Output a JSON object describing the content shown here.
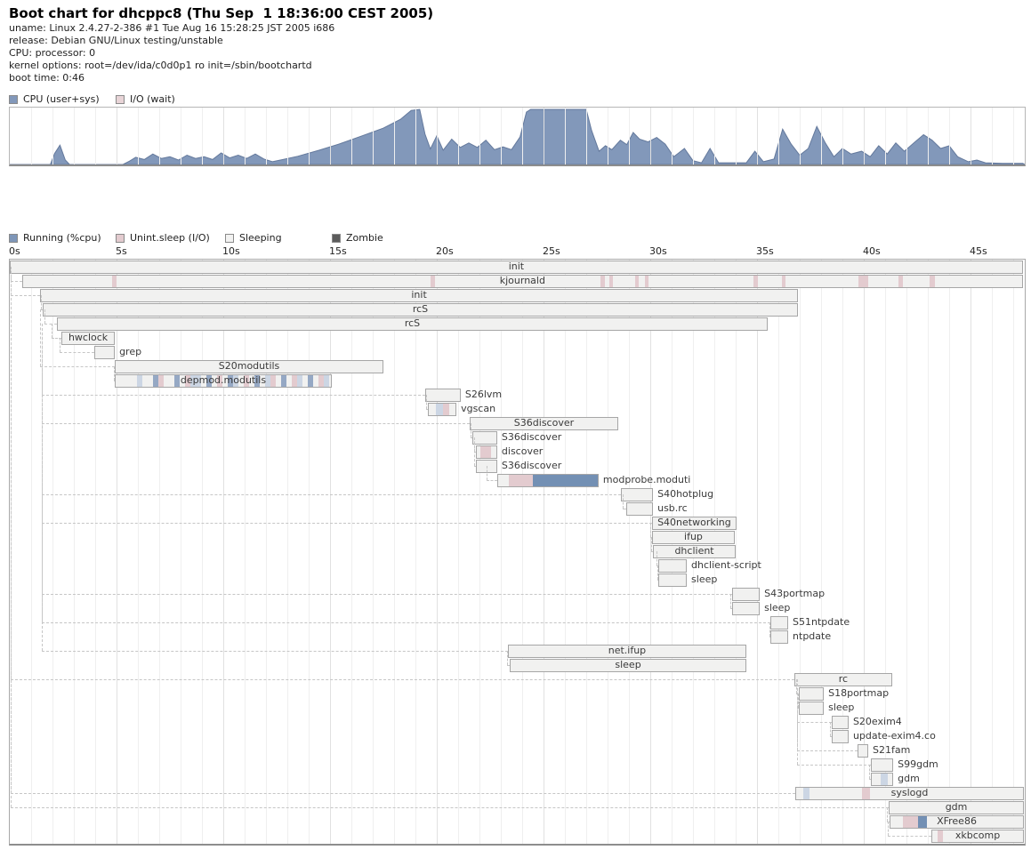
{
  "header": {
    "title": "Boot chart for dhcppc8 (Thu Sep  1 18:36:00 CEST 2005)",
    "info_lines": [
      "uname: Linux 2.4.27-2-386 #1 Tue Aug 16 15:28:25 JST 2005 i686",
      "release: Debian GNU/Linux testing/unstable",
      "CPU: processor: 0",
      "kernel options: root=/dev/ida/c0d0p1 ro init=/sbin/bootchartd",
      "boot time: 0:46"
    ]
  },
  "palette": {
    "B": "#7390b4",
    "b": "#95a8c4",
    "lb": "#ccd6e4",
    "p": "#e3cbcf",
    "bar_bg": "#f1f1f0",
    "bar_border": "#a6a6a6",
    "cpu_fill": "#8298ba",
    "cpu_stroke": "#64799c",
    "sleep_chip": "#f2f2f1",
    "zombie_chip": "#5c5c5c",
    "io_chip": "#e8d4d7"
  },
  "cpu_legend": [
    {
      "label": "CPU (user+sys)",
      "color": "#8298ba"
    },
    {
      "label": "I/O (wait)",
      "color": "#e8d4d7"
    }
  ],
  "proc_legend": [
    {
      "label": "Running (%cpu)",
      "color": "#7e96b8"
    },
    {
      "label": "Unint.sleep (I/O)",
      "color": "#e3cbcf"
    },
    {
      "label": "Sleeping",
      "color": "#f2f2f1"
    },
    {
      "label": "Zombie",
      "color": "#5c5c5c"
    }
  ],
  "chart_data": [
    {
      "type": "area",
      "name": "cpu-usage",
      "title": "CPU (user+sys) utilization over boot",
      "x_unit": "seconds",
      "x_range": [
        0,
        47.5
      ],
      "y_range": [
        0,
        100
      ],
      "grid": true,
      "series": [
        {
          "name": "CPU (user+sys)",
          "points": [
            [
              0,
              0
            ],
            [
              1.9,
              0
            ],
            [
              2.1,
              20
            ],
            [
              2.35,
              35
            ],
            [
              2.6,
              8
            ],
            [
              2.8,
              0
            ],
            [
              5.3,
              0
            ],
            [
              5.6,
              6
            ],
            [
              5.9,
              13
            ],
            [
              6.3,
              9
            ],
            [
              6.7,
              19
            ],
            [
              7.1,
              11
            ],
            [
              7.5,
              14
            ],
            [
              7.9,
              8
            ],
            [
              8.3,
              17
            ],
            [
              8.7,
              11
            ],
            [
              9.1,
              14
            ],
            [
              9.5,
              9
            ],
            [
              9.9,
              21
            ],
            [
              10.3,
              12
            ],
            [
              10.7,
              17
            ],
            [
              11.1,
              11
            ],
            [
              11.5,
              19
            ],
            [
              11.9,
              10
            ],
            [
              12.3,
              5
            ],
            [
              12.8,
              9
            ],
            [
              13.5,
              15
            ],
            [
              14.5,
              26
            ],
            [
              15.5,
              38
            ],
            [
              16.5,
              52
            ],
            [
              17.5,
              66
            ],
            [
              18.3,
              82
            ],
            [
              18.8,
              98
            ],
            [
              19.2,
              100
            ],
            [
              19.45,
              55
            ],
            [
              19.7,
              28
            ],
            [
              20,
              52
            ],
            [
              20.3,
              26
            ],
            [
              20.7,
              46
            ],
            [
              21.1,
              31
            ],
            [
              21.5,
              39
            ],
            [
              21.9,
              31
            ],
            [
              22.3,
              44
            ],
            [
              22.7,
              27
            ],
            [
              23.1,
              32
            ],
            [
              23.5,
              27
            ],
            [
              23.9,
              50
            ],
            [
              24.2,
              95
            ],
            [
              24.4,
              100
            ],
            [
              27,
              100
            ],
            [
              27.25,
              62
            ],
            [
              27.6,
              24
            ],
            [
              27.9,
              34
            ],
            [
              28.2,
              27
            ],
            [
              28.6,
              44
            ],
            [
              28.9,
              36
            ],
            [
              29.2,
              58
            ],
            [
              29.5,
              46
            ],
            [
              29.9,
              41
            ],
            [
              30.3,
              49
            ],
            [
              30.7,
              37
            ],
            [
              31.1,
              14
            ],
            [
              31.6,
              29
            ],
            [
              32,
              7
            ],
            [
              32.4,
              3
            ],
            [
              32.8,
              29
            ],
            [
              33.2,
              3
            ],
            [
              34.5,
              3
            ],
            [
              34.9,
              24
            ],
            [
              35.3,
              5
            ],
            [
              35.8,
              10
            ],
            [
              36.2,
              64
            ],
            [
              36.6,
              37
            ],
            [
              37,
              17
            ],
            [
              37.4,
              29
            ],
            [
              37.8,
              69
            ],
            [
              38.2,
              39
            ],
            [
              38.6,
              14
            ],
            [
              39,
              29
            ],
            [
              39.4,
              19
            ],
            [
              39.9,
              24
            ],
            [
              40.3,
              14
            ],
            [
              40.7,
              34
            ],
            [
              41.1,
              19
            ],
            [
              41.5,
              39
            ],
            [
              41.9,
              24
            ],
            [
              42.4,
              41
            ],
            [
              42.8,
              54
            ],
            [
              43.2,
              44
            ],
            [
              43.6,
              29
            ],
            [
              44,
              34
            ],
            [
              44.4,
              14
            ],
            [
              44.9,
              5
            ],
            [
              45.3,
              8
            ],
            [
              45.7,
              3
            ],
            [
              46.5,
              2
            ],
            [
              47.45,
              2
            ]
          ]
        }
      ]
    },
    {
      "type": "gantt",
      "name": "process-tree",
      "title": "Process timeline",
      "x_unit": "seconds",
      "x_range": [
        0,
        47.5
      ],
      "grid": true,
      "ticks": [
        {
          "s": 0,
          "label": "0s"
        },
        {
          "s": 5,
          "label": "5s"
        },
        {
          "s": 10,
          "label": "10s"
        },
        {
          "s": 15,
          "label": "15s"
        },
        {
          "s": 20,
          "label": "20s"
        },
        {
          "s": 25,
          "label": "25s"
        },
        {
          "s": 30,
          "label": "30s"
        },
        {
          "s": 35,
          "label": "35s"
        },
        {
          "s": 40,
          "label": "40s"
        },
        {
          "s": 45,
          "label": "45s"
        }
      ],
      "processes": [
        {
          "l": "init",
          "s": 0.0,
          "e": 47.45,
          "lp": "in"
        },
        {
          "l": "kjournald",
          "s": 0.58,
          "e": 47.45,
          "lp": "in",
          "seg": [
            [
              4.75,
              4.96,
              "p"
            ],
            [
              19.67,
              19.88,
              "p"
            ],
            [
              27.63,
              27.83,
              "p"
            ],
            [
              28.04,
              28.21,
              "p"
            ],
            [
              29.25,
              29.42,
              "p"
            ],
            [
              29.71,
              29.88,
              "p"
            ],
            [
              34.79,
              35.0,
              "p"
            ],
            [
              36.13,
              36.29,
              "p"
            ],
            [
              39.71,
              40.17,
              "p"
            ],
            [
              41.58,
              41.79,
              "p"
            ],
            [
              43.04,
              43.29,
              "p"
            ]
          ],
          "cn": [
            0.04,
            1
          ]
        },
        {
          "l": "init",
          "s": 1.42,
          "e": 36.92,
          "lp": "in",
          "cn": [
            0.04,
            1
          ]
        },
        {
          "l": "rcS",
          "s": 1.54,
          "e": 36.92,
          "lp": "in",
          "cn": [
            1.46,
            3
          ]
        },
        {
          "l": "rcS",
          "s": 2.21,
          "e": 35.5,
          "lp": "in",
          "cn": [
            1.63,
            4
          ]
        },
        {
          "l": "hwclock",
          "s": 2.42,
          "e": 4.92,
          "lp": "in",
          "cn": [
            1.96,
            5
          ]
        },
        {
          "l": "grep",
          "s": 3.96,
          "e": 4.92,
          "lp": "r",
          "cn": [
            2.33,
            6
          ]
        },
        {
          "l": "S20modutils",
          "s": 4.92,
          "e": 17.5,
          "lp": "in",
          "cn": [
            1.42,
            4
          ]
        },
        {
          "l": "depmod.modutils",
          "s": 4.92,
          "e": 15.08,
          "lp": "in",
          "seg": [
            [
              5.92,
              6.17,
              "lb"
            ],
            [
              6.67,
              6.92,
              "b"
            ],
            [
              6.92,
              7.17,
              "p"
            ],
            [
              7.67,
              7.92,
              "b"
            ],
            [
              8.17,
              8.42,
              "p"
            ],
            [
              8.42,
              8.92,
              "lb"
            ],
            [
              9.17,
              9.42,
              "b"
            ],
            [
              9.67,
              9.92,
              "p"
            ],
            [
              10.17,
              10.42,
              "b"
            ],
            [
              10.42,
              10.67,
              "lb"
            ],
            [
              10.92,
              11.17,
              "p"
            ],
            [
              11.42,
              11.67,
              "b"
            ],
            [
              11.92,
              12.17,
              "lb"
            ],
            [
              12.17,
              12.42,
              "p"
            ],
            [
              12.67,
              12.92,
              "b"
            ],
            [
              13.17,
              13.42,
              "p"
            ],
            [
              13.42,
              13.67,
              "lb"
            ],
            [
              13.92,
              14.17,
              "b"
            ],
            [
              14.42,
              14.67,
              "p"
            ],
            [
              14.67,
              14.92,
              "lb"
            ]
          ],
          "cn": [
            4.88,
            8
          ]
        },
        {
          "l": "S26lvm",
          "s": 19.46,
          "e": 21.12,
          "lp": "r",
          "cn": [
            1.5,
            5
          ]
        },
        {
          "l": "vgscan",
          "s": 19.58,
          "e": 20.92,
          "lp": "r",
          "seg": [
            [
              19.92,
              20.25,
              "lb"
            ],
            [
              20.25,
              20.54,
              "p"
            ]
          ],
          "cn": [
            19.5,
            10
          ]
        },
        {
          "l": "S36discover",
          "s": 21.54,
          "e": 28.5,
          "lp": "in",
          "cn": [
            1.5,
            5
          ]
        },
        {
          "l": "S36discover",
          "s": 21.67,
          "e": 22.83,
          "lp": "r",
          "cn": [
            21.6,
            12
          ]
        },
        {
          "l": "discover",
          "s": 21.83,
          "e": 22.83,
          "lp": "r",
          "seg": [
            [
              22.0,
              22.5,
              "p"
            ]
          ],
          "cn": [
            21.75,
            13
          ]
        },
        {
          "l": "S36discover",
          "s": 21.83,
          "e": 22.83,
          "lp": "r",
          "cn": [
            21.75,
            13
          ]
        },
        {
          "l": "modprobe.moduti",
          "s": 22.83,
          "e": 27.58,
          "lp": "r",
          "seg": [
            [
              23.33,
              24.46,
              "p"
            ],
            [
              24.46,
              27.58,
              "B"
            ]
          ],
          "cn": [
            22.33,
            15
          ]
        },
        {
          "l": "S40hotplug",
          "s": 28.63,
          "e": 30.13,
          "lp": "r",
          "cn": [
            1.5,
            5
          ]
        },
        {
          "l": "usb.rc",
          "s": 28.88,
          "e": 30.13,
          "lp": "r",
          "cn": [
            28.71,
            17
          ]
        },
        {
          "l": "S40networking",
          "s": 30.08,
          "e": 34.04,
          "lp": "in",
          "cn": [
            1.5,
            5
          ]
        },
        {
          "l": "ifup",
          "s": 30.08,
          "e": 33.96,
          "lp": "in",
          "cn": [
            30.0,
            19
          ]
        },
        {
          "l": "dhclient",
          "s": 30.13,
          "e": 34.0,
          "lp": "in",
          "cn": [
            30.04,
            20
          ]
        },
        {
          "l": "dhclient-script",
          "s": 30.38,
          "e": 31.71,
          "lp": "r",
          "cn": [
            30.29,
            21
          ]
        },
        {
          "l": "sleep",
          "s": 30.38,
          "e": 31.71,
          "lp": "r",
          "cn": [
            30.33,
            22
          ]
        },
        {
          "l": "S43portmap",
          "s": 33.83,
          "e": 35.13,
          "lp": "r",
          "cn": [
            1.5,
            5
          ]
        },
        {
          "l": "sleep",
          "s": 33.83,
          "e": 35.13,
          "lp": "r",
          "cn": [
            33.75,
            24
          ]
        },
        {
          "l": "S51ntpdate",
          "s": 35.63,
          "e": 36.46,
          "lp": "r",
          "cn": [
            1.5,
            5
          ]
        },
        {
          "l": "ntpdate",
          "s": 35.63,
          "e": 36.46,
          "lp": "r",
          "cn": [
            35.58,
            26
          ]
        },
        {
          "l": "net.ifup",
          "s": 23.33,
          "e": 34.5,
          "lp": "in",
          "cn": [
            1.5,
            5
          ]
        },
        {
          "l": "sleep",
          "s": 23.42,
          "e": 34.5,
          "lp": "in",
          "cn": [
            23.3,
            28
          ]
        },
        {
          "l": "rc",
          "s": 36.75,
          "e": 41.33,
          "lp": "in",
          "cn": [
            0.04,
            1
          ]
        },
        {
          "l": "S18portmap",
          "s": 36.96,
          "e": 38.13,
          "lp": "r",
          "cn": [
            36.83,
            30
          ]
        },
        {
          "l": "sleep",
          "s": 36.96,
          "e": 38.13,
          "lp": "r",
          "cn": [
            36.92,
            31
          ]
        },
        {
          "l": "S20exim4",
          "s": 38.5,
          "e": 39.29,
          "lp": "r",
          "cn": [
            36.88,
            30
          ]
        },
        {
          "l": "update-exim4.co",
          "s": 38.5,
          "e": 39.29,
          "lp": "r",
          "cn": [
            38.42,
            33
          ]
        },
        {
          "l": "S21fam",
          "s": 39.71,
          "e": 40.21,
          "lp": "r",
          "cn": [
            36.88,
            30
          ]
        },
        {
          "l": "S99gdm",
          "s": 40.33,
          "e": 41.38,
          "lp": "r",
          "cn": [
            36.88,
            30
          ]
        },
        {
          "l": "gdm",
          "s": 40.33,
          "e": 41.38,
          "lp": "r",
          "seg": [
            [
              40.75,
              41.08,
              "lb"
            ]
          ],
          "cn": [
            40.25,
            36
          ]
        },
        {
          "l": "syslogd",
          "s": 36.79,
          "e": 47.5,
          "lp": "in",
          "seg": [
            [
              37.13,
              37.42,
              "lb"
            ],
            [
              39.88,
              40.25,
              "p"
            ]
          ],
          "cn": [
            0.04,
            1
          ]
        },
        {
          "l": "gdm",
          "s": 41.17,
          "e": 47.5,
          "lp": "in",
          "cn": [
            0.04,
            1
          ]
        },
        {
          "l": "XFree86",
          "s": 41.21,
          "e": 47.5,
          "lp": "in",
          "seg": [
            [
              41.79,
              42.5,
              "p"
            ],
            [
              42.5,
              42.92,
              "B"
            ]
          ],
          "cn": [
            41.08,
            39
          ]
        },
        {
          "l": "xkbcomp",
          "s": 43.17,
          "e": 47.5,
          "lp": "in",
          "seg": [
            [
              43.42,
              43.67,
              "p"
            ]
          ],
          "cn": [
            41.13,
            40
          ]
        }
      ]
    }
  ]
}
